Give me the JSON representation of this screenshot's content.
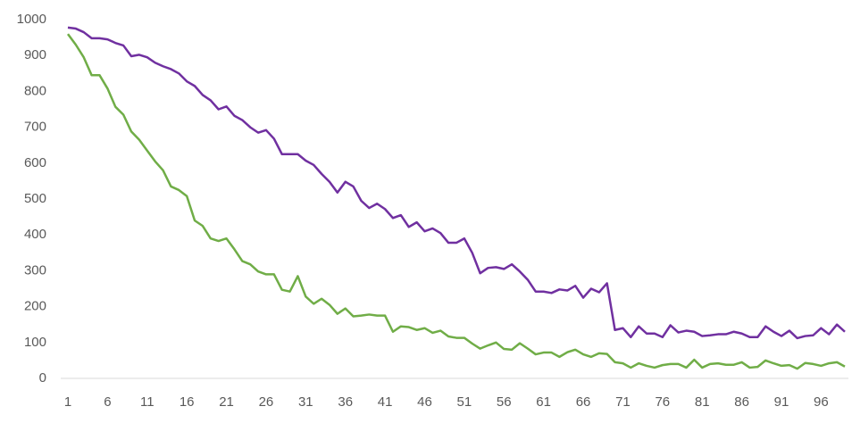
{
  "chart_data": {
    "type": "line",
    "x": [
      1,
      2,
      3,
      4,
      5,
      6,
      7,
      8,
      9,
      10,
      11,
      12,
      13,
      14,
      15,
      16,
      17,
      18,
      19,
      20,
      21,
      22,
      23,
      24,
      25,
      26,
      27,
      28,
      29,
      30,
      31,
      32,
      33,
      34,
      35,
      36,
      37,
      38,
      39,
      40,
      41,
      42,
      43,
      44,
      45,
      46,
      47,
      48,
      49,
      50,
      51,
      52,
      53,
      54,
      55,
      56,
      57,
      58,
      59,
      60,
      61,
      62,
      63,
      64,
      65,
      66,
      67,
      68,
      69,
      70,
      71,
      72,
      73,
      74,
      75,
      76,
      77,
      78,
      79,
      80,
      81,
      82,
      83,
      84,
      85,
      86,
      87,
      88,
      89,
      90,
      91,
      92,
      93,
      94,
      95,
      96,
      97,
      98,
      99
    ],
    "series": [
      {
        "color": "#7030a0",
        "values": [
          978,
          975,
          965,
          948,
          948,
          945,
          935,
          928,
          898,
          902,
          895,
          880,
          870,
          862,
          850,
          828,
          815,
          790,
          775,
          750,
          758,
          732,
          720,
          700,
          685,
          692,
          668,
          625,
          625,
          625,
          607,
          595,
          570,
          548,
          518,
          548,
          535,
          495,
          475,
          487,
          472,
          447,
          455,
          422,
          435,
          410,
          418,
          405,
          378,
          378,
          390,
          350,
          293,
          308,
          310,
          305,
          318,
          298,
          275,
          242,
          242,
          238,
          248,
          245,
          258,
          225,
          250,
          240,
          265,
          135,
          140,
          115,
          145,
          125,
          125,
          115,
          148,
          128,
          133,
          130,
          118,
          120,
          123,
          123,
          130,
          125,
          115,
          115,
          145,
          130,
          118,
          133,
          112,
          118,
          120,
          140,
          123,
          150,
          130
        ]
      },
      {
        "color": "#70ad47",
        "values": [
          960,
          930,
          895,
          845,
          845,
          808,
          757,
          735,
          688,
          665,
          635,
          605,
          580,
          535,
          525,
          508,
          440,
          425,
          390,
          383,
          390,
          360,
          327,
          318,
          298,
          290,
          290,
          247,
          242,
          285,
          228,
          208,
          222,
          205,
          180,
          195,
          173,
          175,
          178,
          175,
          175,
          130,
          145,
          143,
          135,
          140,
          127,
          133,
          117,
          113,
          113,
          97,
          83,
          92,
          100,
          82,
          80,
          98,
          83,
          67,
          72,
          72,
          60,
          73,
          80,
          67,
          60,
          70,
          68,
          45,
          42,
          30,
          42,
          35,
          30,
          37,
          40,
          40,
          30,
          52,
          30,
          40,
          42,
          38,
          38,
          45,
          30,
          32,
          50,
          42,
          35,
          37,
          27,
          43,
          40,
          35,
          42,
          45,
          33
        ]
      }
    ],
    "xlim": [
      1,
      99
    ],
    "xticks": [
      1,
      6,
      11,
      16,
      21,
      26,
      31,
      36,
      41,
      46,
      51,
      56,
      61,
      66,
      71,
      76,
      81,
      86,
      91,
      96
    ],
    "ylim": [
      0,
      1000
    ],
    "yticks": [
      0,
      100,
      200,
      300,
      400,
      500,
      600,
      700,
      800,
      900,
      1000
    ]
  }
}
